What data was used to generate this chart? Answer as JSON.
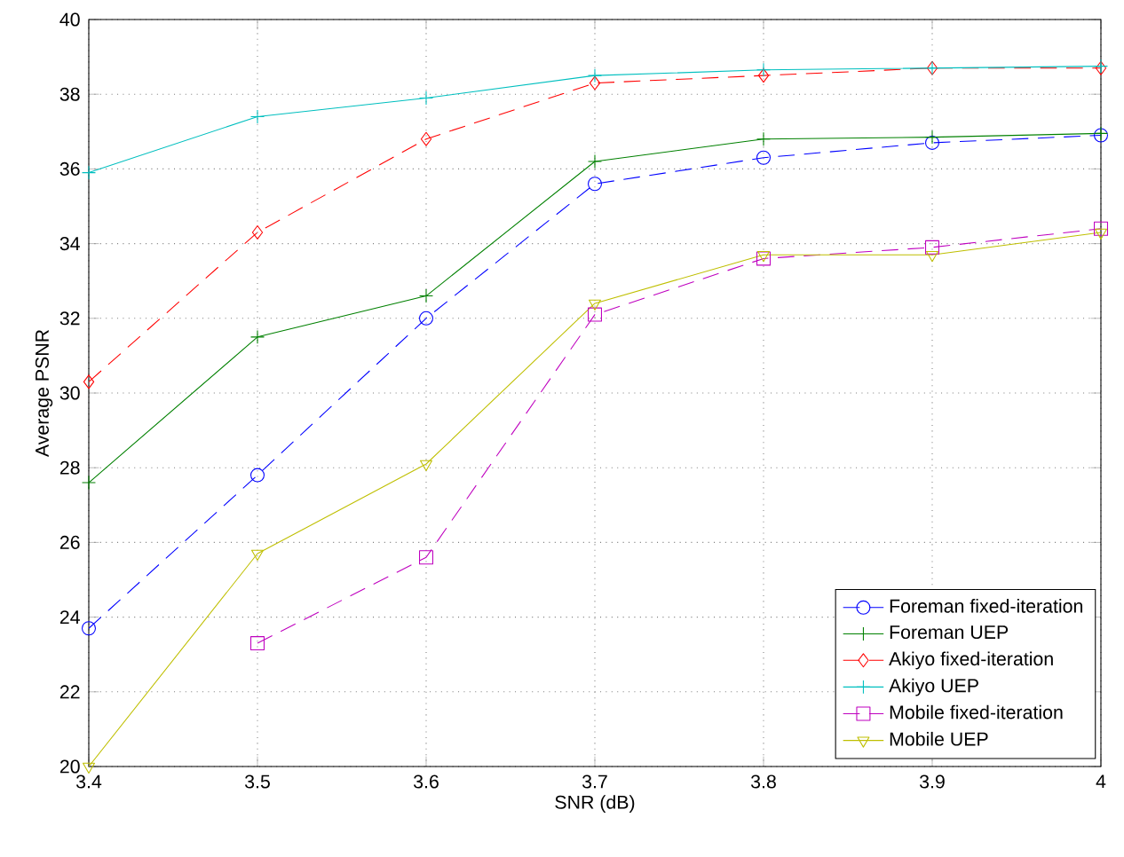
{
  "chart_data": {
    "type": "line",
    "xlabel": "SNR (dB)",
    "ylabel": "Average PSNR",
    "x": [
      3.4,
      3.5,
      3.6,
      3.7,
      3.8,
      3.9,
      4.0
    ],
    "xlim": [
      3.4,
      4.0
    ],
    "xticks": [
      3.4,
      3.5,
      3.6,
      3.7,
      3.8,
      3.9,
      4
    ],
    "ylim": [
      20,
      40
    ],
    "yticks": [
      20,
      22,
      24,
      26,
      28,
      30,
      32,
      34,
      36,
      38,
      40
    ],
    "grid": true,
    "legend": "bottom right",
    "series": [
      {
        "name": "Foreman fixed-iteration",
        "color": "#0000ff",
        "marker": "circle",
        "line_style": "dashed",
        "values": [
          23.7,
          27.8,
          32.0,
          35.6,
          36.3,
          36.7,
          36.9
        ]
      },
      {
        "name": "Foreman UEP",
        "color": "#008000",
        "marker": "cross",
        "line_style": "solid",
        "values": [
          27.6,
          31.5,
          32.6,
          36.2,
          36.8,
          36.85,
          36.95
        ]
      },
      {
        "name": "Akiyo fixed-iteration",
        "color": "#ff0000",
        "marker": "diamond",
        "line_style": "dashed",
        "values": [
          30.3,
          34.3,
          36.8,
          38.3,
          38.5,
          38.7,
          38.7
        ]
      },
      {
        "name": "Akiyo UEP",
        "color": "#00bfbf",
        "marker": "cross",
        "line_style": "solid",
        "values": [
          35.9,
          37.4,
          37.9,
          38.5,
          38.65,
          38.7,
          38.75
        ]
      },
      {
        "name": "Mobile fixed-iteration",
        "color": "#bf00bf",
        "marker": "square",
        "line_style": "dashed",
        "values": [
          null,
          23.3,
          25.6,
          32.1,
          33.6,
          33.9,
          34.4
        ]
      },
      {
        "name": "Mobile UEP",
        "color": "#bfbf00",
        "marker": "triangle",
        "line_style": "solid",
        "values": [
          20.0,
          25.7,
          28.1,
          32.4,
          33.7,
          33.7,
          34.3
        ]
      }
    ]
  }
}
